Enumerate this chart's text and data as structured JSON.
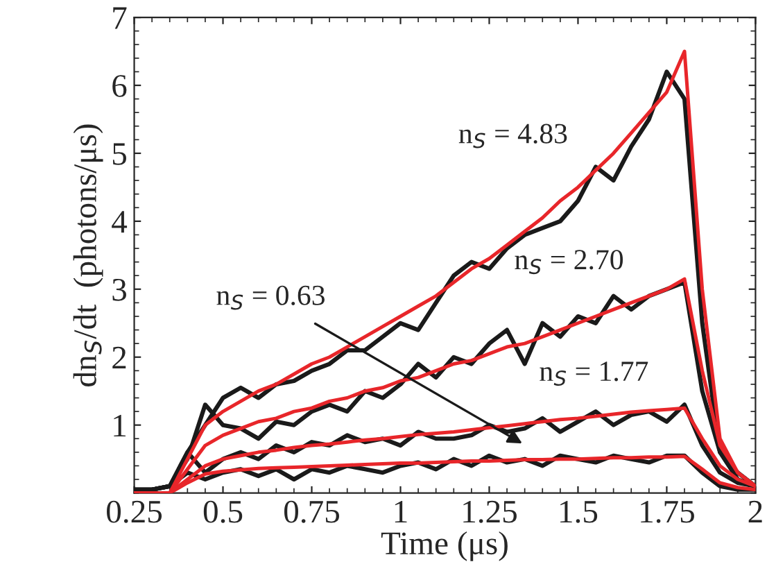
{
  "chart_data": {
    "type": "line",
    "xlabel": "Time (μs)",
    "ylabel": "dn$_{S}$/dt  (photons/μs)",
    "x": [
      0.25,
      0.3,
      0.35,
      0.4,
      0.45,
      0.5,
      0.55,
      0.6,
      0.65,
      0.7,
      0.75,
      0.8,
      0.85,
      0.9,
      0.95,
      1.0,
      1.05,
      1.1,
      1.15,
      1.2,
      1.25,
      1.3,
      1.35,
      1.4,
      1.45,
      1.5,
      1.55,
      1.6,
      1.65,
      1.7,
      1.75,
      1.8,
      1.85,
      1.9,
      1.95,
      2.0
    ],
    "series": [
      {
        "color": "#1a1a1a",
        "values": [
          0.05,
          0.05,
          0.1,
          0.6,
          1.0,
          1.4,
          1.55,
          1.4,
          1.6,
          1.65,
          1.8,
          1.9,
          2.1,
          2.1,
          2.3,
          2.5,
          2.4,
          2.8,
          3.2,
          3.4,
          3.3,
          3.6,
          3.8,
          3.9,
          4.0,
          4.3,
          4.8,
          4.6,
          5.1,
          5.5,
          6.2,
          5.8,
          2.5,
          0.6,
          0.2,
          0.1
        ]
      },
      {
        "color": "#1a1a1a",
        "values": [
          0.05,
          0.05,
          0.1,
          0.5,
          1.3,
          1.0,
          0.95,
          0.8,
          1.05,
          1.0,
          1.2,
          1.3,
          1.2,
          1.5,
          1.4,
          1.6,
          1.9,
          1.7,
          2.0,
          1.9,
          2.2,
          2.4,
          1.9,
          2.5,
          2.3,
          2.6,
          2.5,
          2.9,
          2.7,
          2.9,
          3.0,
          3.1,
          1.5,
          0.6,
          0.3,
          0.1
        ]
      },
      {
        "color": "#1a1a1a",
        "values": [
          0.05,
          0.05,
          0.1,
          0.6,
          0.3,
          0.5,
          0.6,
          0.5,
          0.7,
          0.6,
          0.75,
          0.7,
          0.85,
          0.75,
          0.8,
          0.7,
          0.9,
          0.8,
          0.8,
          0.85,
          1.0,
          0.9,
          0.95,
          1.1,
          0.9,
          1.05,
          1.2,
          1.0,
          1.15,
          1.2,
          1.05,
          1.3,
          0.7,
          0.3,
          0.15,
          0.1
        ]
      },
      {
        "color": "#1a1a1a",
        "values": [
          0.05,
          0.05,
          0.1,
          0.3,
          0.2,
          0.3,
          0.35,
          0.25,
          0.35,
          0.2,
          0.35,
          0.3,
          0.4,
          0.35,
          0.3,
          0.4,
          0.45,
          0.35,
          0.5,
          0.4,
          0.55,
          0.45,
          0.5,
          0.4,
          0.55,
          0.5,
          0.45,
          0.55,
          0.5,
          0.45,
          0.55,
          0.55,
          0.3,
          0.1,
          0.05,
          0.05
        ]
      },
      {
        "color": "#e8262a",
        "values": [
          0,
          0,
          0,
          0.5,
          1.0,
          1.2,
          1.35,
          1.5,
          1.6,
          1.75,
          1.9,
          2.0,
          2.15,
          2.3,
          2.45,
          2.6,
          2.75,
          2.9,
          3.1,
          3.3,
          3.45,
          3.65,
          3.85,
          4.05,
          4.3,
          4.5,
          4.75,
          5.0,
          5.3,
          5.6,
          5.9,
          6.5,
          3.0,
          0.8,
          0.3,
          0.1
        ]
      },
      {
        "color": "#e8262a",
        "values": [
          0,
          0,
          0,
          0.35,
          0.7,
          0.85,
          0.95,
          1.05,
          1.1,
          1.2,
          1.25,
          1.35,
          1.4,
          1.5,
          1.55,
          1.65,
          1.7,
          1.8,
          1.9,
          1.95,
          2.05,
          2.15,
          2.2,
          2.3,
          2.4,
          2.5,
          2.6,
          2.7,
          2.8,
          2.9,
          3.0,
          3.15,
          1.8,
          0.7,
          0.3,
          0.1
        ]
      },
      {
        "color": "#e8262a",
        "values": [
          0,
          0,
          0,
          0.2,
          0.4,
          0.5,
          0.55,
          0.6,
          0.63,
          0.67,
          0.7,
          0.72,
          0.75,
          0.78,
          0.8,
          0.83,
          0.86,
          0.88,
          0.9,
          0.93,
          0.96,
          0.99,
          1.02,
          1.05,
          1.08,
          1.1,
          1.13,
          1.16,
          1.19,
          1.21,
          1.23,
          1.25,
          0.8,
          0.4,
          0.2,
          0.1
        ]
      },
      {
        "color": "#e8262a",
        "values": [
          0,
          0,
          0,
          0.15,
          0.28,
          0.32,
          0.34,
          0.36,
          0.37,
          0.38,
          0.39,
          0.4,
          0.41,
          0.42,
          0.43,
          0.44,
          0.44,
          0.45,
          0.46,
          0.47,
          0.47,
          0.48,
          0.49,
          0.49,
          0.5,
          0.5,
          0.51,
          0.52,
          0.52,
          0.53,
          0.53,
          0.54,
          0.35,
          0.15,
          0.08,
          0.05
        ]
      }
    ],
    "annotations": [
      "n$_{S}$ = 4.83",
      "n$_{S}$ = 2.70",
      "n$_{S}$ = 1.77",
      "n$_{S}$ = 0.63"
    ],
    "xlim": [
      0.25,
      2
    ],
    "xticks": [
      0.25,
      0.5,
      0.75,
      1,
      1.25,
      1.5,
      1.75,
      2
    ],
    "ylim": [
      0,
      7
    ],
    "yticks": [
      1,
      2,
      3,
      4,
      5,
      6,
      7
    ],
    "grid": false,
    "line_style": "solid",
    "marker": "none"
  }
}
